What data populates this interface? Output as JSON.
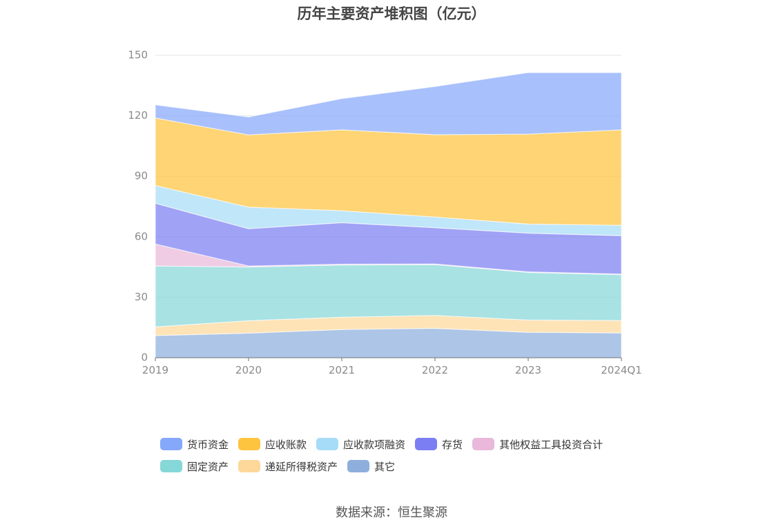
{
  "title": "历年主要资产堆积图（亿元）",
  "source": "数据来源：恒生聚源",
  "chart_data": {
    "type": "area",
    "stacked": true,
    "x": [
      "2019",
      "2020",
      "2021",
      "2022",
      "2023",
      "2024Q1"
    ],
    "ylim": [
      0,
      150
    ],
    "yticks": [
      0,
      30,
      60,
      90,
      120,
      150
    ],
    "grid": true,
    "legend_position": "bottom",
    "series": [
      {
        "name": "其它",
        "color": "#8eaedc",
        "values": [
          11,
          12.2,
          14,
          14.6,
          12.6,
          12.3
        ]
      },
      {
        "name": "递延所得税资产",
        "color": "#fdd89a",
        "values": [
          4.3,
          6.2,
          6.1,
          6.4,
          6.1,
          6.2
        ]
      },
      {
        "name": "固定资产",
        "color": "#86d7d8",
        "values": [
          30.2,
          26.6,
          25.9,
          25.2,
          23.6,
          22.7
        ]
      },
      {
        "name": "其他权益工具投资合计",
        "color": "#e9b8da",
        "values": [
          10.9,
          0.5,
          0.4,
          0.3,
          0.3,
          0.3
        ]
      },
      {
        "name": "存货",
        "color": "#7b7ef2",
        "values": [
          20.2,
          18.5,
          20.6,
          18.0,
          19.2,
          19.0
        ]
      },
      {
        "name": "应收款项融资",
        "color": "#a6dcf7",
        "values": [
          8.8,
          10.7,
          5.9,
          5.3,
          4.5,
          5.2
        ]
      },
      {
        "name": "应收账款",
        "color": "#fdc43f",
        "values": [
          33.5,
          35.8,
          40.1,
          40.8,
          44.6,
          47.3
        ]
      },
      {
        "name": "货币资金",
        "color": "#86a8fb",
        "values": [
          6.5,
          8.9,
          15.5,
          23.9,
          30.5,
          28.4
        ]
      }
    ]
  },
  "legend": {
    "row1": [
      "货币资金",
      "应收账款",
      "应收款项融资",
      "存货",
      "其他权益工具投资合计"
    ],
    "row2": [
      "固定资产",
      "递延所得税资产",
      "其它"
    ]
  }
}
